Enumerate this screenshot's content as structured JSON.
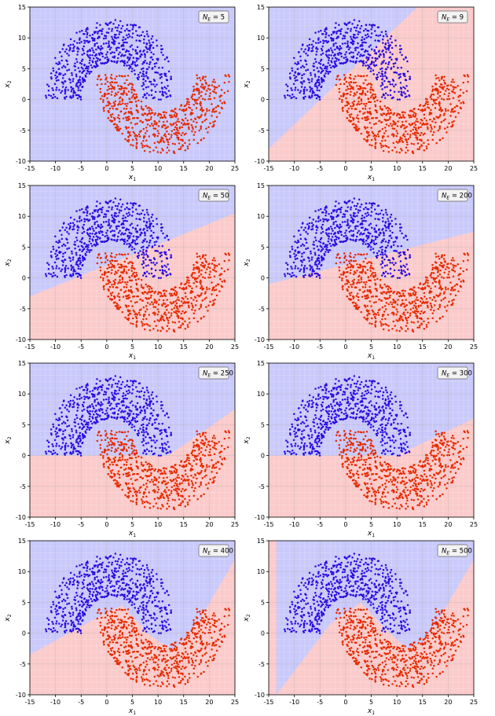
{
  "chart_data": [
    {
      "type": "scatter",
      "annotation": "5",
      "xlabel": "x",
      "xlabel_sub": "1",
      "ylabel": "x",
      "ylabel_sub": "2",
      "xlim": [
        -15,
        25
      ],
      "ylim": [
        -10,
        15
      ],
      "x_ticks": [
        "-15",
        "-10",
        "-5",
        "0",
        "5",
        "10",
        "15",
        "20",
        "25"
      ],
      "y_ticks": [
        "-10",
        "-5",
        "0",
        "5",
        "10",
        "15"
      ],
      "boundary": [
        [
          -15,
          -10
        ],
        [
          25,
          -10
        ],
        [
          25,
          -10
        ]
      ],
      "series": [
        {
          "color": "#2a0de0"
        },
        {
          "color": "#e52b00"
        }
      ],
      "grid": true,
      "legend": "top-right"
    },
    {
      "type": "scatter",
      "annotation": "9",
      "xlabel": "x",
      "xlabel_sub": "1",
      "ylabel": "x",
      "ylabel_sub": "2",
      "xlim": [
        -15,
        25
      ],
      "ylim": [
        -10,
        15
      ],
      "x_ticks": [
        "-15",
        "-10",
        "-5",
        "0",
        "5",
        "10",
        "15",
        "20",
        "25"
      ],
      "y_ticks": [
        "-10",
        "-5",
        "0",
        "5",
        "10",
        "15"
      ],
      "boundary": [
        [
          -15,
          -8
        ],
        [
          14,
          15
        ]
      ],
      "series": [
        {
          "color": "#2a0de0"
        },
        {
          "color": "#e52b00"
        }
      ],
      "grid": true,
      "legend": "top-right"
    },
    {
      "type": "scatter",
      "annotation": "50",
      "xlabel": "x",
      "xlabel_sub": "1",
      "ylabel": "x",
      "ylabel_sub": "2",
      "xlim": [
        -15,
        25
      ],
      "ylim": [
        -10,
        15
      ],
      "x_ticks": [
        "-15",
        "-10",
        "-5",
        "0",
        "5",
        "10",
        "15",
        "20",
        "25"
      ],
      "y_ticks": [
        "-10",
        "-5",
        "0",
        "5",
        "10",
        "15"
      ],
      "boundary": [
        [
          -15,
          -3
        ],
        [
          25,
          10.5
        ]
      ],
      "series": [
        {
          "color": "#2a0de0"
        },
        {
          "color": "#e52b00"
        }
      ],
      "grid": true,
      "legend": "top-right"
    },
    {
      "type": "scatter",
      "annotation": "200",
      "xlabel": "x",
      "xlabel_sub": "1",
      "ylabel": "x",
      "ylabel_sub": "2",
      "xlim": [
        -15,
        25
      ],
      "ylim": [
        -10,
        15
      ],
      "x_ticks": [
        "-15",
        "-10",
        "-5",
        "0",
        "5",
        "10",
        "15",
        "20",
        "25"
      ],
      "y_ticks": [
        "-10",
        "-5",
        "0",
        "5",
        "10",
        "15"
      ],
      "boundary": [
        [
          -15,
          -1
        ],
        [
          25,
          7.5
        ]
      ],
      "series": [
        {
          "color": "#2a0de0"
        },
        {
          "color": "#e52b00"
        }
      ],
      "grid": true,
      "legend": "top-right"
    },
    {
      "type": "scatter",
      "annotation": "250",
      "xlabel": "x",
      "xlabel_sub": "1",
      "ylabel": "x",
      "ylabel_sub": "2",
      "xlim": [
        -15,
        25
      ],
      "ylim": [
        -10,
        15
      ],
      "x_ticks": [
        "-15",
        "-10",
        "-5",
        "0",
        "5",
        "10",
        "15",
        "20",
        "25"
      ],
      "y_ticks": [
        "-10",
        "-5",
        "0",
        "5",
        "10",
        "15"
      ],
      "boundary": [
        [
          -15,
          0
        ],
        [
          12,
          0
        ],
        [
          25,
          7.5
        ]
      ],
      "series": [
        {
          "color": "#2a0de0"
        },
        {
          "color": "#e52b00"
        }
      ],
      "grid": true,
      "legend": "top-right"
    },
    {
      "type": "scatter",
      "annotation": "300",
      "xlabel": "x",
      "xlabel_sub": "1",
      "ylabel": "x",
      "ylabel_sub": "2",
      "xlim": [
        -15,
        25
      ],
      "ylim": [
        -10,
        15
      ],
      "x_ticks": [
        "-15",
        "-10",
        "-5",
        "0",
        "5",
        "10",
        "15",
        "20",
        "25"
      ],
      "y_ticks": [
        "-10",
        "-5",
        "0",
        "5",
        "10",
        "15"
      ],
      "boundary": [
        [
          -15,
          0
        ],
        [
          10,
          0
        ],
        [
          25,
          6
        ]
      ],
      "series": [
        {
          "color": "#2a0de0"
        },
        {
          "color": "#e52b00"
        }
      ],
      "grid": true,
      "legend": "top-right"
    },
    {
      "type": "scatter",
      "annotation": "400",
      "xlabel": "x",
      "xlabel_sub": "1",
      "ylabel": "x",
      "ylabel_sub": "2",
      "xlim": [
        -15,
        25
      ],
      "ylim": [
        -10,
        15
      ],
      "x_ticks": [
        "-15",
        "-10",
        "-5",
        "0",
        "5",
        "10",
        "15",
        "20",
        "25"
      ],
      "y_ticks": [
        "-10",
        "-5",
        "0",
        "5",
        "10",
        "15"
      ],
      "boundary": [
        [
          -15,
          -3.5
        ],
        [
          -3,
          2
        ],
        [
          3,
          4.5
        ],
        [
          8,
          0
        ],
        [
          13,
          -3
        ],
        [
          18,
          2
        ],
        [
          25,
          12
        ]
      ],
      "series": [
        {
          "color": "#2a0de0"
        },
        {
          "color": "#e52b00"
        }
      ],
      "grid": true,
      "legend": "top-right"
    },
    {
      "type": "scatter",
      "annotation": "500",
      "xlabel": "x",
      "xlabel_sub": "1",
      "ylabel": "x",
      "ylabel_sub": "2",
      "xlim": [
        -15,
        25
      ],
      "ylim": [
        -10,
        15
      ],
      "x_ticks": [
        "-15",
        "-10",
        "-5",
        "0",
        "5",
        "10",
        "15",
        "20",
        "25"
      ],
      "y_ticks": [
        "-10",
        "-5",
        "0",
        "5",
        "10",
        "15"
      ],
      "boundary": [
        [
          -13.5,
          -10
        ],
        [
          -3,
          1.5
        ],
        [
          3,
          5
        ],
        [
          8,
          0.5
        ],
        [
          12,
          -2.5
        ],
        [
          15,
          -1.5
        ],
        [
          18,
          2
        ],
        [
          25,
          12
        ]
      ],
      "series": [
        {
          "color": "#2a0de0"
        },
        {
          "color": "#e52b00"
        }
      ],
      "grid": true,
      "legend": "top-right"
    }
  ]
}
